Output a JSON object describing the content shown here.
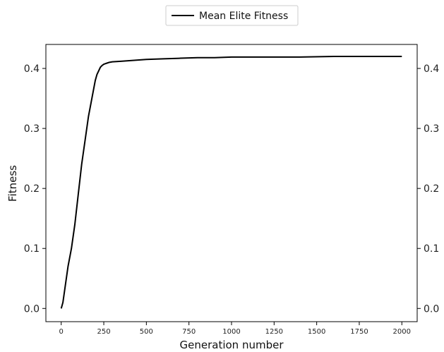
{
  "chart_data": {
    "type": "line",
    "xlabel": "Generation number",
    "ylabel": "Fitness",
    "xlim": [
      -90,
      2090
    ],
    "ylim": [
      -0.022,
      0.44
    ],
    "xticks": [
      0,
      250,
      500,
      750,
      1000,
      1250,
      1500,
      1750,
      2000
    ],
    "xtick_labels": [
      "0",
      "250",
      "500",
      "750",
      "1000",
      "1250",
      "1500",
      "1750",
      "2000"
    ],
    "yticks": [
      0.0,
      0.1,
      0.2,
      0.3,
      0.4
    ],
    "ytick_labels": [
      "0.0",
      "0.1",
      "0.2",
      "0.3",
      "0.4"
    ],
    "right_ytick_labels": [
      "0.0",
      "0.1",
      "0.2",
      "0.3",
      "0.4"
    ],
    "grid": false,
    "legend": {
      "placement": "top-center",
      "entries": [
        "Mean Elite Fitness"
      ]
    },
    "series": [
      {
        "name": "Mean Elite Fitness",
        "color": "#000000",
        "x": [
          0,
          10,
          20,
          40,
          60,
          80,
          100,
          120,
          140,
          160,
          180,
          200,
          210,
          220,
          230,
          240,
          250,
          260,
          270,
          280,
          300,
          350,
          400,
          450,
          500,
          600,
          700,
          800,
          900,
          1000,
          1200,
          1400,
          1600,
          1800,
          2000
        ],
        "y": [
          0.0,
          0.01,
          0.03,
          0.07,
          0.1,
          0.14,
          0.19,
          0.24,
          0.28,
          0.32,
          0.35,
          0.38,
          0.39,
          0.396,
          0.402,
          0.405,
          0.407,
          0.408,
          0.409,
          0.41,
          0.411,
          0.412,
          0.413,
          0.414,
          0.415,
          0.416,
          0.417,
          0.418,
          0.418,
          0.419,
          0.419,
          0.419,
          0.42,
          0.42,
          0.42
        ]
      }
    ]
  }
}
